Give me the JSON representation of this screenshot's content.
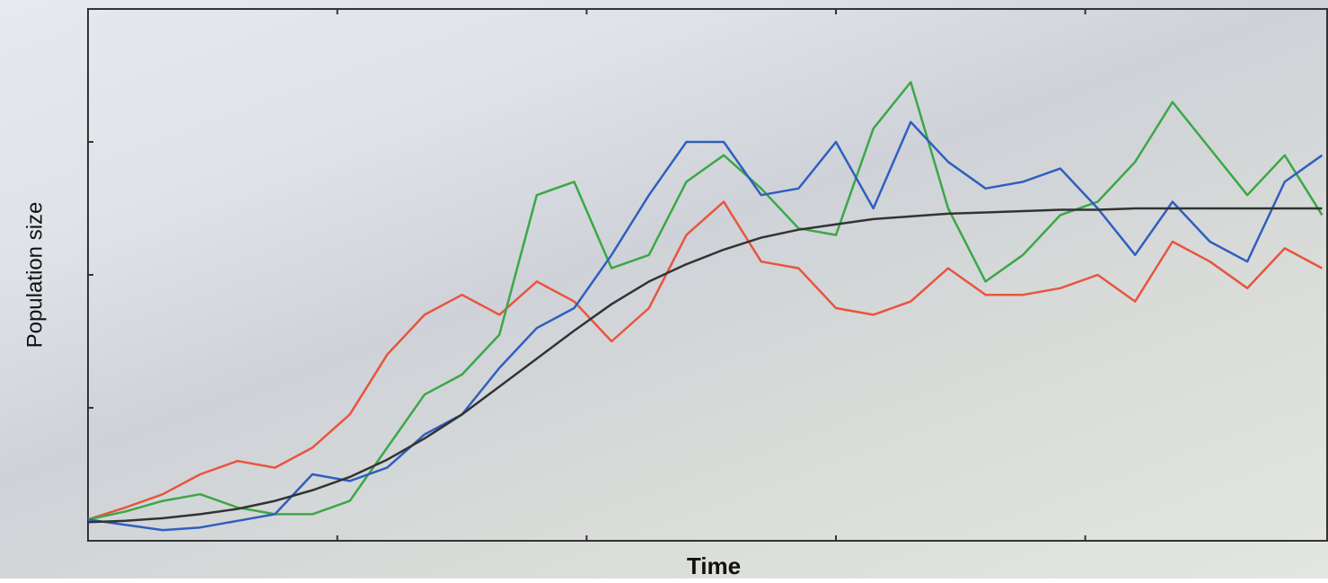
{
  "chart_data": {
    "type": "line",
    "x_label": "Time",
    "y_label": "Population size",
    "x": [
      0,
      0.15,
      0.3,
      0.45,
      0.6,
      0.75,
      0.9,
      1.05,
      1.2,
      1.35,
      1.5,
      1.65,
      1.8,
      1.95,
      2.1,
      2.25,
      2.4,
      2.55,
      2.7,
      2.85,
      3.0,
      3.15,
      3.3,
      3.45,
      3.6,
      3.75,
      3.9,
      4.05,
      4.2,
      4.35,
      4.5,
      4.65,
      4.8,
      4.95
    ],
    "series": [
      {
        "color": "#e8553e",
        "values": [
          0.16,
          0.25,
          0.35,
          0.5,
          0.6,
          0.55,
          0.7,
          0.95,
          1.4,
          1.7,
          1.85,
          1.7,
          1.95,
          1.8,
          1.5,
          1.75,
          2.3,
          2.55,
          2.1,
          2.05,
          1.75,
          1.7,
          1.8,
          2.05,
          1.85,
          1.85,
          1.9,
          2.0,
          1.8,
          2.25,
          2.1,
          1.9,
          2.2,
          2.05
        ]
      },
      {
        "color": "#3aa845",
        "values": [
          0.16,
          0.22,
          0.3,
          0.35,
          0.25,
          0.2,
          0.2,
          0.3,
          0.7,
          1.1,
          1.25,
          1.55,
          2.6,
          2.7,
          2.05,
          2.15,
          2.7,
          2.9,
          2.65,
          2.35,
          2.3,
          3.1,
          3.45,
          2.5,
          1.95,
          2.15,
          2.45,
          2.55,
          2.85,
          3.3,
          2.95,
          2.6,
          2.9,
          2.45
        ]
      },
      {
        "color": "#2f5fbf",
        "values": [
          0.16,
          0.12,
          0.08,
          0.1,
          0.15,
          0.2,
          0.5,
          0.45,
          0.55,
          0.8,
          0.95,
          1.3,
          1.6,
          1.75,
          2.15,
          2.6,
          3.0,
          3.0,
          2.6,
          2.65,
          3.0,
          2.5,
          3.15,
          2.85,
          2.65,
          2.7,
          2.8,
          2.5,
          2.15,
          2.55,
          2.25,
          2.1,
          2.7,
          2.9
        ]
      },
      {
        "color": "#333333",
        "values": [
          0.14,
          0.15,
          0.17,
          0.2,
          0.24,
          0.3,
          0.38,
          0.48,
          0.61,
          0.77,
          0.95,
          1.16,
          1.37,
          1.58,
          1.78,
          1.95,
          2.08,
          2.19,
          2.28,
          2.34,
          2.38,
          2.42,
          2.44,
          2.46,
          2.47,
          2.48,
          2.49,
          2.49,
          2.5,
          2.5,
          2.5,
          2.5,
          2.5,
          2.5
        ]
      }
    ],
    "xlim": [
      0,
      4.97
    ],
    "ylim": [
      0,
      4
    ],
    "xticks": [
      1,
      2,
      3,
      4
    ],
    "yticks": [
      1,
      2,
      3
    ],
    "grid": false
  }
}
